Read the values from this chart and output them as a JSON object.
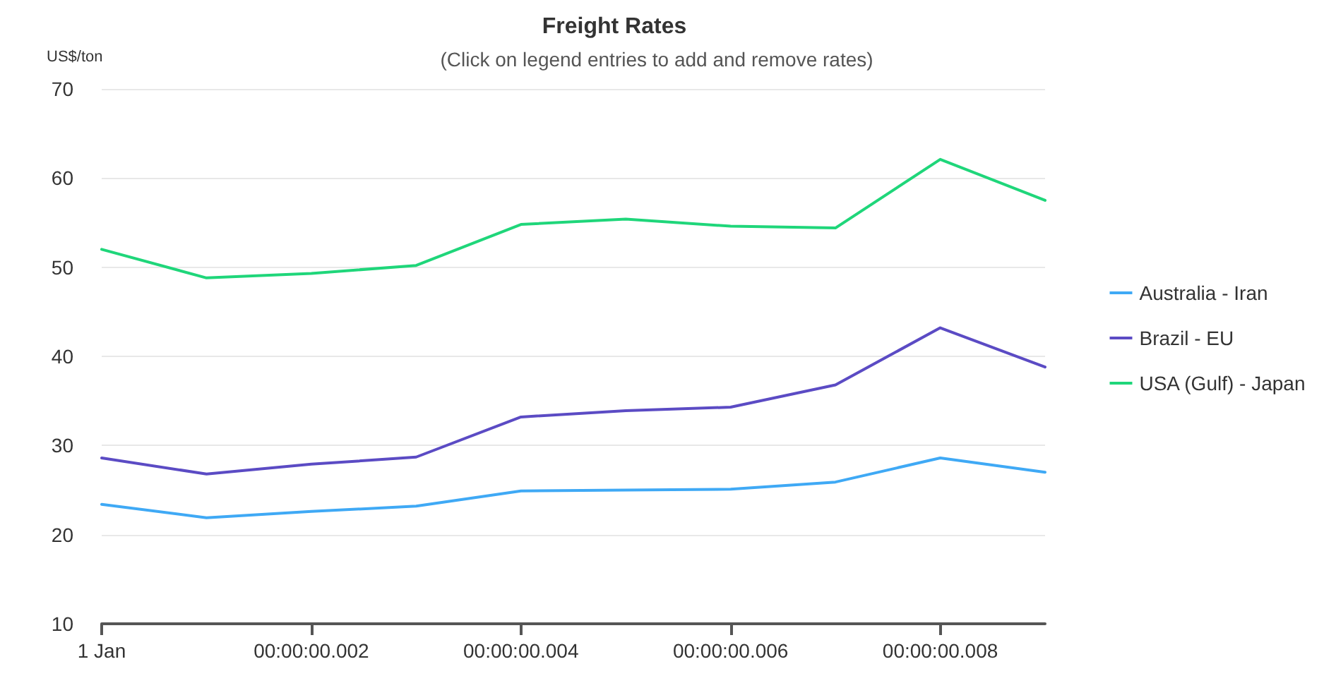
{
  "chart_data": {
    "type": "line",
    "title": "Freight Rates",
    "subtitle": "(Click on legend entries to add and remove rates)",
    "ylabel": "US$/ton",
    "categories": [
      "1 Jan",
      null,
      "00:00:00.002",
      null,
      "00:00:00.004",
      null,
      "00:00:00.006",
      null,
      "00:00:00.008",
      null
    ],
    "ylim": [
      10,
      70
    ],
    "yticks": [
      10,
      20,
      30,
      40,
      50,
      60,
      70
    ],
    "grid": "y",
    "legend": "right",
    "marker": "none",
    "line_style": "solid",
    "series": [
      {
        "name": "Australia - Iran",
        "color": "#3fa9f5",
        "values": [
          23.4,
          21.9,
          22.6,
          23.2,
          24.9,
          25.0,
          25.1,
          25.9,
          28.6,
          27.0
        ]
      },
      {
        "name": "Brazil - EU",
        "color": "#5b4bc4",
        "values": [
          28.6,
          26.8,
          27.9,
          28.7,
          33.2,
          33.9,
          34.3,
          36.8,
          43.2,
          38.8
        ]
      },
      {
        "name": "USA (Gulf) - Japan",
        "color": "#1fd67a",
        "values": [
          52.0,
          48.8,
          49.3,
          50.2,
          54.8,
          55.4,
          54.6,
          54.4,
          62.1,
          57.5
        ]
      }
    ]
  }
}
